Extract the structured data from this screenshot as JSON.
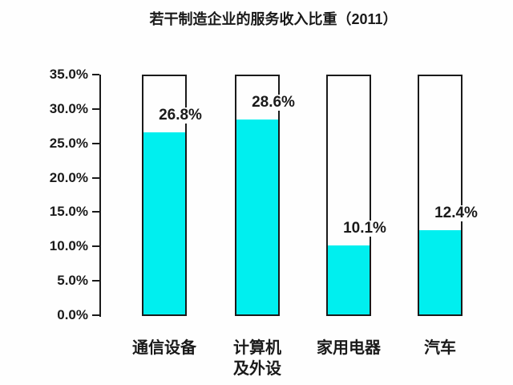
{
  "chart_data": {
    "type": "bar",
    "title": "若干制造企业的服务收入比重（2011）",
    "categories": [
      "通信设备",
      "计算机\n及外设",
      "家用电器",
      "汽车"
    ],
    "values": [
      26.8,
      28.6,
      10.1,
      12.4
    ],
    "data_labels": [
      "26.8%",
      "28.6%",
      "10.1%",
      "12.4%"
    ],
    "xlabel": "",
    "ylabel": "",
    "ylim": [
      0,
      35
    ],
    "ytick_step": 5,
    "ytick_labels": [
      "0.0%",
      "5.0%",
      "10.0%",
      "15.0%",
      "20.0%",
      "25.0%",
      "30.0%",
      "35.0%"
    ],
    "grid": false,
    "legend": "none",
    "bar_fill_color": "#00efef",
    "bar_outline_color": "#1a1a1a",
    "bar_outline_full_height": true,
    "text_color": "#1a1a1a",
    "background_color": "#fefefe"
  }
}
